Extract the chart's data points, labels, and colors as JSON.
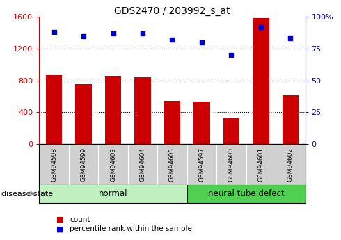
{
  "title": "GDS2470 / 203992_s_at",
  "samples": [
    "GSM94598",
    "GSM94599",
    "GSM94603",
    "GSM94604",
    "GSM94605",
    "GSM94597",
    "GSM94600",
    "GSM94601",
    "GSM94602"
  ],
  "counts": [
    870,
    750,
    860,
    840,
    545,
    530,
    320,
    1580,
    610
  ],
  "percentiles": [
    88,
    85,
    87,
    87,
    82,
    80,
    70,
    92,
    83
  ],
  "groups": [
    {
      "label": "normal",
      "start": 0,
      "end": 4,
      "color": "#c0f0c0"
    },
    {
      "label": "neural tube defect",
      "start": 5,
      "end": 8,
      "color": "#50d050"
    }
  ],
  "bar_color": "#cc0000",
  "dot_color": "#0000cc",
  "left_ylim": [
    0,
    1600
  ],
  "right_ylim": [
    0,
    100
  ],
  "left_yticks": [
    0,
    400,
    800,
    1200,
    1600
  ],
  "right_yticks": [
    0,
    25,
    50,
    75,
    100
  ],
  "right_yticklabels": [
    "0",
    "25",
    "50",
    "75",
    "100%"
  ],
  "grid_values": [
    400,
    800,
    1200
  ],
  "legend_count_label": "count",
  "legend_pct_label": "percentile rank within the sample",
  "disease_state_label": "disease state",
  "tick_area_color": "#d0d0d0"
}
